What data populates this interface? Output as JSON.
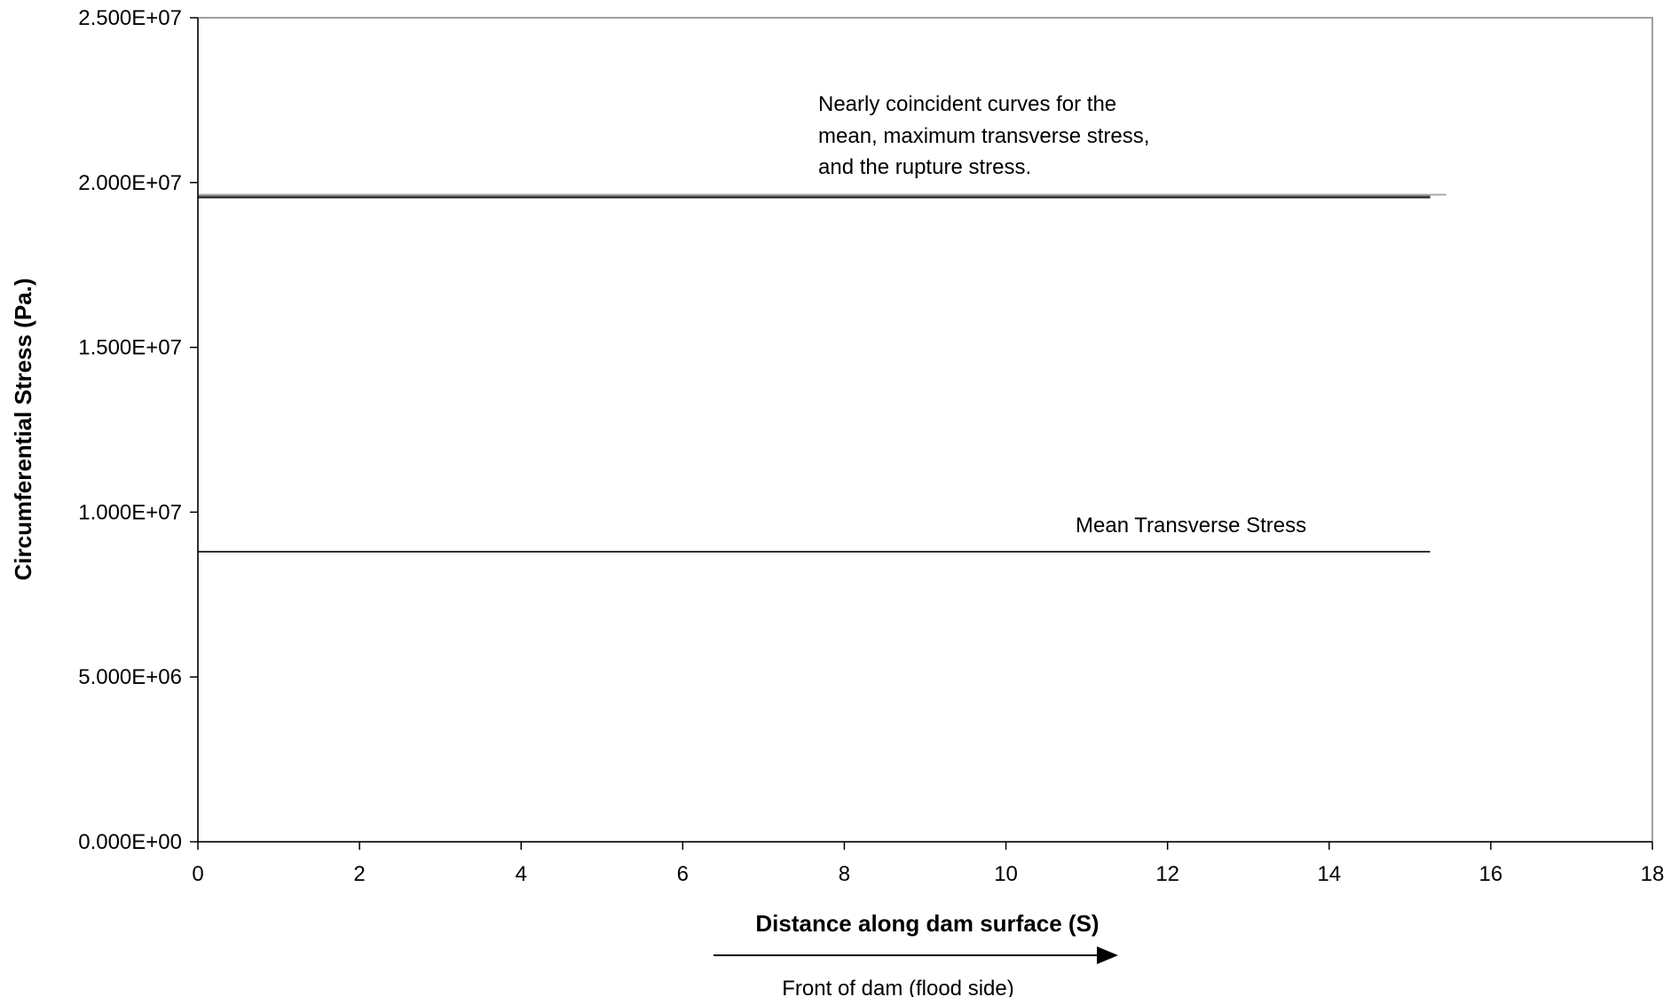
{
  "chart_data": {
    "type": "line",
    "xlabel": "Distance along dam surface (S)",
    "ylabel": "Circumferential Stress (Pa.)",
    "xlim": [
      0,
      18
    ],
    "ylim": [
      0,
      25000000
    ],
    "x_ticks": [
      0,
      2,
      4,
      6,
      8,
      10,
      12,
      14,
      16,
      18
    ],
    "x_tick_labels": [
      "0",
      "2",
      "4",
      "6",
      "8",
      "10",
      "12",
      "14",
      "16",
      "18"
    ],
    "y_ticks": [
      0,
      5000000,
      10000000,
      15000000,
      20000000,
      25000000
    ],
    "y_tick_labels": [
      "0.000E+00",
      "5.000E+06",
      "1.000E+07",
      "1.500E+07",
      "2.000E+07",
      "2.500E+07"
    ],
    "grid": false,
    "legend": "none",
    "series": [
      {
        "color": "#333333",
        "x": [
          0,
          15.25
        ],
        "y": [
          8800000,
          8800000
        ]
      },
      {
        "color": "#000000",
        "x": [
          0,
          15.25
        ],
        "y": [
          19550000,
          19550000
        ]
      },
      {
        "color": "#555555",
        "x": [
          0,
          15.25
        ],
        "y": [
          19580000,
          19580000
        ]
      },
      {
        "color": "#aaaaaa",
        "x": [
          0,
          15.45
        ],
        "y": [
          19630000,
          19630000
        ]
      }
    ],
    "annotations": [
      {
        "id": "coincident",
        "lines": [
          "Nearly coincident curves for the",
          "mean, maximum transverse stress,",
          "and the rupture stress."
        ]
      },
      {
        "id": "mean",
        "text": "Mean Transverse Stress"
      }
    ],
    "direction_note": "Front of dam (flood side)"
  }
}
